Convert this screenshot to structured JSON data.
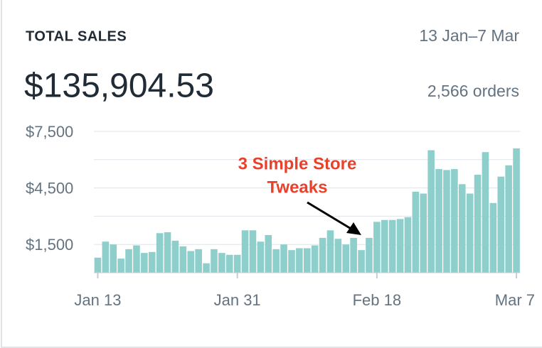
{
  "header": {
    "title": "TOTAL SALES",
    "date_range": "13 Jan–7 Mar",
    "total": "$135,904.53",
    "orders": "2,566 orders"
  },
  "chart_data": {
    "type": "bar",
    "categories": [
      "Jan 13",
      null,
      null,
      null,
      null,
      null,
      null,
      null,
      null,
      null,
      null,
      null,
      null,
      null,
      null,
      null,
      null,
      null,
      "Jan 31",
      null,
      null,
      null,
      null,
      null,
      null,
      null,
      null,
      null,
      null,
      null,
      null,
      null,
      null,
      null,
      null,
      null,
      "Feb 18",
      null,
      null,
      null,
      null,
      null,
      null,
      null,
      null,
      null,
      null,
      null,
      null,
      null,
      null,
      null,
      null,
      null,
      "Mar 7"
    ],
    "values": [
      800,
      1650,
      1500,
      750,
      1250,
      1450,
      1050,
      1100,
      2100,
      2150,
      1700,
      1400,
      1150,
      1250,
      500,
      1250,
      1050,
      950,
      950,
      2250,
      2250,
      1650,
      2000,
      1250,
      1500,
      1200,
      1300,
      1300,
      1450,
      1850,
      2250,
      1800,
      1500,
      1850,
      1200,
      1850,
      2700,
      2800,
      2800,
      2850,
      2950,
      4300,
      4200,
      6500,
      5500,
      5450,
      5500,
      4700,
      4200,
      5200,
      6400,
      3700,
      5100,
      5700,
      6600
    ],
    "color": "#8ecfcc",
    "ylim": [
      0,
      7500
    ],
    "yticks": [
      {
        "value": 1500,
        "label": "$1,500"
      },
      {
        "value": 4500,
        "label": "$4,500"
      },
      {
        "value": 7500,
        "label": "$7,500"
      }
    ],
    "minor_yticks": [
      3000,
      6000
    ],
    "grid": true,
    "annotation": {
      "lines": [
        "3 Simple Store",
        "Tweaks"
      ],
      "color": "#e8412c"
    }
  }
}
